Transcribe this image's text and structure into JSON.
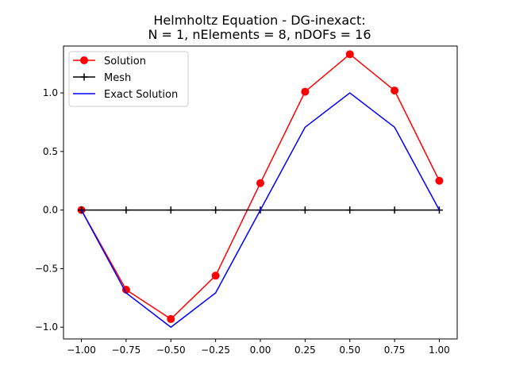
{
  "chart_data": {
    "type": "line",
    "title": "Helmholtz Equation - DG-inexact:",
    "subtitle": "N = 1,  nElements = 8,  nDOFs = 16",
    "xlabel": "",
    "ylabel": "",
    "xlim": [
      -1.1,
      1.1
    ],
    "ylim": [
      -1.1,
      1.4
    ],
    "x_ticks": [
      -1.0,
      -0.75,
      -0.5,
      -0.25,
      0.0,
      0.25,
      0.5,
      0.75,
      1.0
    ],
    "x_tick_labels": [
      "−1.00",
      "−0.75",
      "−0.50",
      "−0.25",
      "0.00",
      "0.25",
      "0.50",
      "0.75",
      "1.00"
    ],
    "y_ticks": [
      -1.0,
      -0.5,
      0.0,
      0.5,
      1.0
    ],
    "y_tick_labels": [
      "−1.0",
      "−0.5",
      "0.0",
      "0.5",
      "1.0"
    ],
    "grid": false,
    "legend_position": "top-left",
    "series": [
      {
        "name": "Solution",
        "color": "#ff0000",
        "marker": "circle",
        "x": [
          -1.0,
          -0.75,
          -0.5,
          -0.25,
          0.0,
          0.25,
          0.5,
          0.75,
          1.0
        ],
        "y": [
          0.0,
          -0.68,
          -0.93,
          -0.56,
          0.23,
          1.01,
          1.33,
          1.02,
          0.25
        ]
      },
      {
        "name": "Mesh",
        "color": "#000000",
        "marker": "plus",
        "x": [
          -1.0,
          -0.75,
          -0.5,
          -0.25,
          0.0,
          0.25,
          0.5,
          0.75,
          1.0
        ],
        "y": [
          0.0,
          0.0,
          0.0,
          0.0,
          0.0,
          0.0,
          0.0,
          0.0,
          0.0
        ]
      },
      {
        "name": "Exact Solution",
        "color": "#0000ff",
        "marker": "none",
        "x": [
          -1.0,
          -0.75,
          -0.5,
          -0.25,
          0.0,
          0.25,
          0.5,
          0.75,
          1.0
        ],
        "y": [
          0.0,
          -0.707,
          -1.0,
          -0.707,
          0.0,
          0.707,
          1.0,
          0.707,
          0.0
        ]
      }
    ]
  }
}
